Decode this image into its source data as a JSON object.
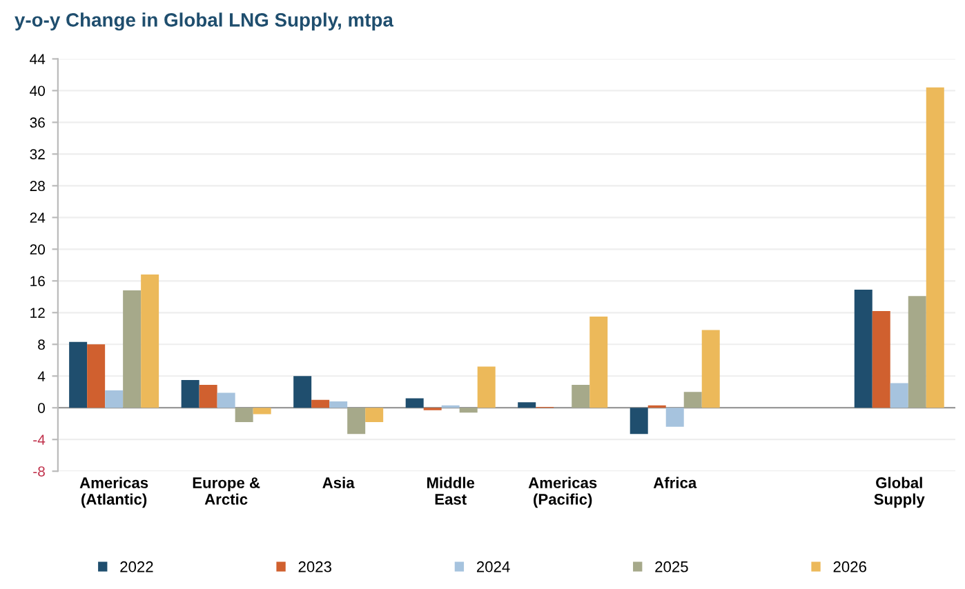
{
  "chart_data": {
    "type": "bar",
    "title": "y-o-y Change in Global LNG Supply, mtpa",
    "categories": [
      "Americas\n(Atlantic)",
      "Europe &\nArctic",
      "Asia",
      "Middle\nEast",
      "Americas\n(Pacific)",
      "Africa",
      null,
      "Global\nSupply"
    ],
    "series": [
      {
        "name": "2022",
        "color": "#1f4e6e",
        "values": [
          8.3,
          3.5,
          4.0,
          1.2,
          0.7,
          -3.3,
          null,
          14.9
        ]
      },
      {
        "name": "2023",
        "color": "#d0602f",
        "values": [
          8.0,
          2.9,
          1.0,
          -0.3,
          0.1,
          0.3,
          null,
          12.2
        ]
      },
      {
        "name": "2024",
        "color": "#a6c3de",
        "values": [
          2.2,
          1.9,
          0.8,
          0.3,
          0.0,
          -2.4,
          null,
          3.1
        ]
      },
      {
        "name": "2025",
        "color": "#a6a98a",
        "values": [
          14.8,
          -1.8,
          -3.3,
          -0.6,
          2.9,
          2.0,
          null,
          14.1
        ]
      },
      {
        "name": "2026",
        "color": "#ecb95a",
        "values": [
          16.8,
          -0.8,
          -1.8,
          5.2,
          11.5,
          9.8,
          null,
          40.4
        ]
      }
    ],
    "ylim": [
      -8,
      44
    ],
    "yticks": [
      {
        "value": -8,
        "label": "-8"
      },
      {
        "value": -4,
        "label": "-4"
      },
      0,
      4,
      8,
      12,
      16,
      20,
      24,
      28,
      32,
      36,
      40,
      44
    ],
    "grid": "y",
    "legend": "bottom"
  }
}
